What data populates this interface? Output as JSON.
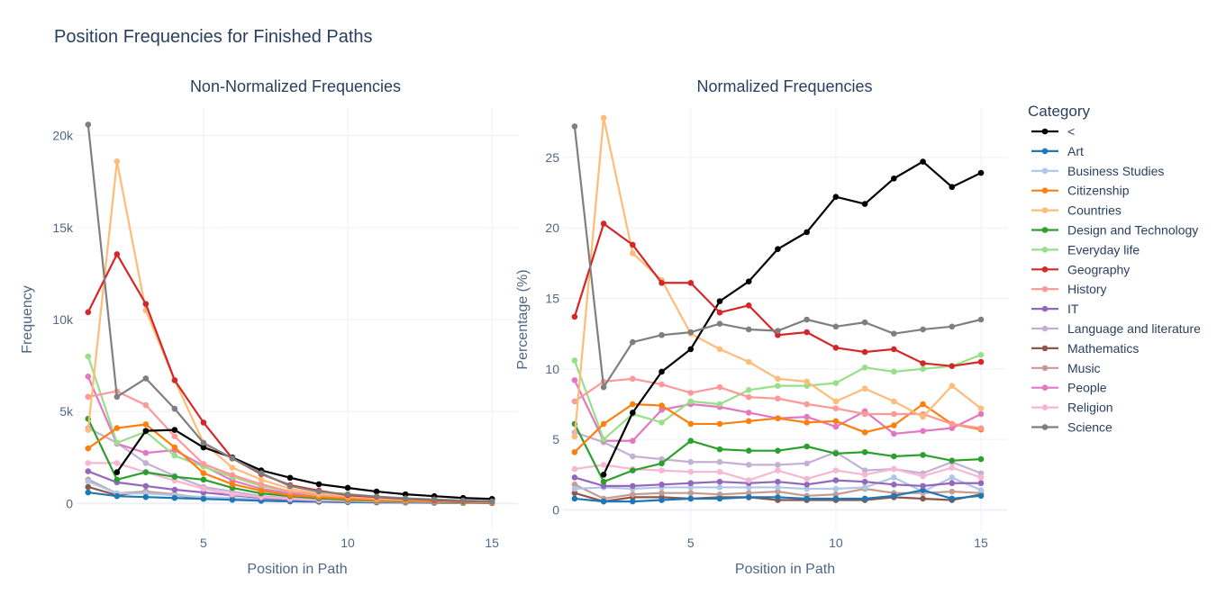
{
  "title": "Position Frequencies for Finished Paths",
  "legend_title": "Category",
  "chart_data": [
    {
      "type": "line",
      "title": "Non-Normalized Frequencies",
      "xlabel": "Position in Path",
      "ylabel": "Frequency",
      "xlim": [
        0.6,
        15.9
      ],
      "ylim": [
        -1500,
        21500
      ],
      "xticks": [
        5,
        10,
        15
      ],
      "yticks": [
        0,
        5000,
        10000,
        15000,
        20000
      ],
      "ytick_labels": [
        "0",
        "5k",
        "10k",
        "15k",
        "20k"
      ],
      "grid": true,
      "x": [
        1,
        2,
        3,
        4,
        5,
        6,
        7,
        8,
        9,
        10,
        11,
        12,
        13,
        14,
        15
      ],
      "series": [
        {
          "name": "Mathematics",
          "color": "#8c564b",
          "values": [
            900,
            450,
            650,
            450,
            300,
            250,
            150,
            120,
            100,
            80,
            60,
            50,
            40,
            30,
            20
          ]
        },
        {
          "name": "Music",
          "color": "#c49c94",
          "values": [
            1300,
            550,
            650,
            500,
            300,
            250,
            180,
            130,
            100,
            80,
            70,
            50,
            40,
            30,
            30
          ]
        },
        {
          "name": "Business Studies",
          "color": "#aec7e8",
          "values": [
            1200,
            550,
            550,
            450,
            350,
            300,
            200,
            150,
            120,
            100,
            80,
            70,
            60,
            50,
            40
          ]
        },
        {
          "name": "Art",
          "color": "#1f77b4",
          "values": [
            600,
            400,
            350,
            300,
            250,
            200,
            150,
            120,
            100,
            80,
            70,
            60,
            50,
            40,
            30
          ]
        },
        {
          "name": "IT",
          "color": "#9467bd",
          "values": [
            1750,
            1150,
            950,
            750,
            600,
            450,
            300,
            200,
            150,
            130,
            100,
            80,
            60,
            50,
            40
          ]
        },
        {
          "name": "Language and literature",
          "color": "#c5b0d5",
          "values": [
            4100,
            3300,
            2200,
            1500,
            900,
            650,
            400,
            300,
            200,
            150,
            120,
            100,
            80,
            60,
            50
          ]
        },
        {
          "name": "Religion",
          "color": "#f7b6d2",
          "values": [
            2200,
            2200,
            1700,
            1250,
            800,
            500,
            350,
            250,
            180,
            150,
            120,
            100,
            80,
            60,
            50
          ]
        },
        {
          "name": "People",
          "color": "#e377c2",
          "values": [
            6900,
            3250,
            2750,
            2900,
            2050,
            1250,
            800,
            550,
            400,
            280,
            220,
            150,
            120,
            90,
            70
          ]
        },
        {
          "name": "Design and Technology",
          "color": "#2ca02c",
          "values": [
            4600,
            1300,
            1700,
            1450,
            1300,
            850,
            550,
            400,
            280,
            200,
            150,
            120,
            90,
            70,
            50
          ]
        },
        {
          "name": "Everyday life",
          "color": "#98df8a",
          "values": [
            8000,
            3300,
            3900,
            2600,
            2000,
            1450,
            950,
            650,
            450,
            300,
            250,
            200,
            150,
            120,
            90
          ]
        },
        {
          "name": "Citizenship",
          "color": "#ff7f0e",
          "values": [
            3000,
            4100,
            4300,
            3050,
            1650,
            1050,
            700,
            450,
            350,
            250,
            180,
            150,
            120,
            90,
            60
          ]
        },
        {
          "name": "History",
          "color": "#ff9896",
          "values": [
            5800,
            6100,
            5350,
            3650,
            2150,
            1550,
            1050,
            650,
            480,
            350,
            250,
            200,
            150,
            120,
            80
          ]
        },
        {
          "name": "Countries",
          "color": "#ffbb78",
          "values": [
            4000,
            18600,
            10500,
            6700,
            3300,
            1950,
            1300,
            800,
            550,
            400,
            300,
            200,
            170,
            130,
            90
          ]
        },
        {
          "name": "<",
          "color": "#000000",
          "values": [
            null,
            1700,
            3950,
            4000,
            3050,
            2500,
            1800,
            1400,
            1050,
            850,
            650,
            500,
            400,
            300,
            250
          ]
        },
        {
          "name": "Geography",
          "color": "#d62728",
          "values": [
            10400,
            13550,
            10850,
            6700,
            4400,
            2450,
            1600,
            1000,
            700,
            450,
            350,
            250,
            180,
            130,
            100
          ]
        },
        {
          "name": "Science",
          "color": "#7f7f7f",
          "values": [
            20600,
            5800,
            6800,
            5150,
            3300,
            2450,
            1650,
            950,
            650,
            500,
            380,
            280,
            220,
            160,
            120
          ]
        }
      ]
    },
    {
      "type": "line",
      "title": "Normalized Frequencies",
      "xlabel": "Position in Path",
      "ylabel": "Percentage (%)",
      "xlim": [
        0.6,
        15.9
      ],
      "ylim": [
        -1.5,
        28.5
      ],
      "xticks": [
        5,
        10,
        15
      ],
      "yticks": [
        0,
        5,
        10,
        15,
        20,
        25
      ],
      "ytick_labels": [
        "0",
        "5",
        "10",
        "15",
        "20",
        "25"
      ],
      "grid": true,
      "x": [
        1,
        2,
        3,
        4,
        5,
        6,
        7,
        8,
        9,
        10,
        11,
        12,
        13,
        14,
        15
      ],
      "series": [
        {
          "name": "Mathematics",
          "color": "#8c564b",
          "values": [
            1.2,
            0.6,
            0.9,
            0.9,
            0.8,
            0.9,
            0.9,
            0.7,
            0.7,
            0.7,
            0.7,
            0.9,
            0.8,
            0.7,
            1.1
          ]
        },
        {
          "name": "Music",
          "color": "#c49c94",
          "values": [
            1.8,
            0.8,
            1.1,
            1.2,
            1.2,
            1.1,
            1.2,
            1.3,
            1.0,
            1.1,
            1.5,
            1.2,
            1.2,
            1.3,
            1.2
          ]
        },
        {
          "name": "Business Studies",
          "color": "#aec7e8",
          "values": [
            1.5,
            1.6,
            1.5,
            1.6,
            1.6,
            1.6,
            1.6,
            1.6,
            1.5,
            1.5,
            1.6,
            2.3,
            1.3,
            2.3,
            1.4
          ]
        },
        {
          "name": "Art",
          "color": "#1f77b4",
          "values": [
            0.8,
            0.6,
            0.6,
            0.7,
            0.8,
            0.8,
            0.9,
            0.9,
            0.8,
            0.8,
            0.8,
            1.0,
            1.4,
            0.8,
            1.0
          ]
        },
        {
          "name": "IT",
          "color": "#9467bd",
          "values": [
            2.3,
            1.7,
            1.7,
            1.8,
            1.9,
            2.0,
            1.9,
            2.0,
            1.8,
            2.1,
            2.0,
            1.8,
            1.7,
            1.9,
            1.9
          ]
        },
        {
          "name": "Language and literature",
          "color": "#c5b0d5",
          "values": [
            5.5,
            4.8,
            3.8,
            3.6,
            3.4,
            3.4,
            3.2,
            3.2,
            3.3,
            4.1,
            2.8,
            2.9,
            2.6,
            3.4,
            2.6
          ]
        },
        {
          "name": "Religion",
          "color": "#f7b6d2",
          "values": [
            2.9,
            3.2,
            2.9,
            2.8,
            2.7,
            2.7,
            2.1,
            2.8,
            2.2,
            2.8,
            2.5,
            2.9,
            2.4,
            3.0,
            2.3
          ]
        },
        {
          "name": "People",
          "color": "#e377c2",
          "values": [
            9.2,
            4.9,
            4.9,
            7.1,
            7.5,
            7.3,
            6.9,
            6.5,
            6.6,
            5.9,
            7.0,
            5.4,
            5.6,
            5.8,
            6.8
          ]
        },
        {
          "name": "Design and Technology",
          "color": "#2ca02c",
          "values": [
            6.1,
            2.0,
            2.8,
            3.3,
            4.9,
            4.3,
            4.2,
            4.2,
            4.5,
            4.0,
            4.1,
            3.8,
            3.9,
            3.5,
            3.6
          ]
        },
        {
          "name": "Everyday life",
          "color": "#98df8a",
          "values": [
            10.6,
            5.0,
            6.8,
            6.2,
            7.7,
            7.5,
            8.5,
            8.8,
            8.8,
            9.0,
            10.1,
            9.8,
            10.0,
            10.2,
            11.0
          ]
        },
        {
          "name": "Citizenship",
          "color": "#ff7f0e",
          "values": [
            4.1,
            6.1,
            7.5,
            7.4,
            6.1,
            6.1,
            6.3,
            6.5,
            6.2,
            6.3,
            5.5,
            6.0,
            7.5,
            6.1,
            5.7
          ]
        },
        {
          "name": "History",
          "color": "#ff9896",
          "values": [
            7.7,
            9.1,
            9.3,
            8.9,
            8.3,
            8.7,
            8.0,
            7.9,
            7.5,
            7.2,
            6.8,
            6.8,
            6.8,
            6.1,
            5.8
          ]
        },
        {
          "name": "Countries",
          "color": "#ffbb78",
          "values": [
            5.2,
            27.8,
            18.2,
            16.3,
            12.5,
            11.4,
            10.5,
            9.3,
            9.1,
            7.7,
            8.6,
            7.7,
            6.6,
            8.8,
            7.2
          ]
        },
        {
          "name": "<",
          "color": "#000000",
          "values": [
            null,
            2.5,
            6.9,
            9.8,
            11.4,
            14.8,
            16.2,
            18.5,
            19.7,
            22.2,
            21.7,
            23.5,
            24.7,
            22.9,
            23.9
          ]
        },
        {
          "name": "Geography",
          "color": "#d62728",
          "values": [
            13.7,
            20.3,
            18.8,
            16.1,
            16.1,
            14.0,
            14.5,
            12.4,
            12.6,
            11.5,
            11.2,
            11.4,
            10.4,
            10.2,
            10.5
          ]
        },
        {
          "name": "Science",
          "color": "#7f7f7f",
          "values": [
            27.2,
            8.7,
            11.9,
            12.4,
            12.6,
            13.2,
            12.8,
            12.7,
            13.5,
            13.0,
            13.3,
            12.5,
            12.8,
            13.0,
            13.5
          ]
        }
      ]
    }
  ],
  "legend_order": [
    "<",
    "Art",
    "Business Studies",
    "Citizenship",
    "Countries",
    "Design and Technology",
    "Everyday life",
    "Geography",
    "History",
    "IT",
    "Language and literature",
    "Mathematics",
    "Music",
    "People",
    "Religion",
    "Science"
  ]
}
